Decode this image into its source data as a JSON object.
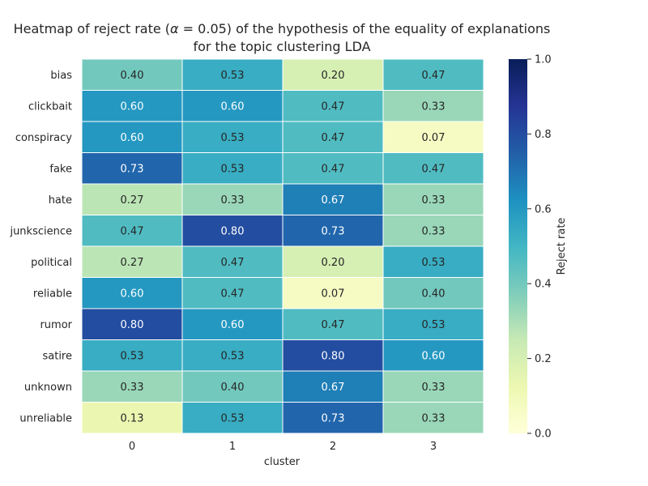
{
  "chart_data": {
    "type": "heatmap",
    "title_prefix": "Heatmap of reject rate (",
    "title_alpha_symbol": "α",
    "title_alpha_value": " = 0.05",
    "title_suffix": ") of the hypothesis of the equality of explanations",
    "title_line2": "for the topic clustering LDA",
    "xlabel": "cluster",
    "ylabel": "",
    "x_categories": [
      "0",
      "1",
      "2",
      "3"
    ],
    "y_categories": [
      "bias",
      "clickbait",
      "conspiracy",
      "fake",
      "hate",
      "junkscience",
      "political",
      "reliable",
      "rumor",
      "satire",
      "unknown",
      "unreliable"
    ],
    "values": [
      [
        0.4,
        0.53,
        0.2,
        0.47
      ],
      [
        0.6,
        0.6,
        0.47,
        0.33
      ],
      [
        0.6,
        0.53,
        0.47,
        0.07
      ],
      [
        0.73,
        0.53,
        0.47,
        0.47
      ],
      [
        0.27,
        0.33,
        0.67,
        0.33
      ],
      [
        0.47,
        0.8,
        0.73,
        0.33
      ],
      [
        0.27,
        0.47,
        0.2,
        0.53
      ],
      [
        0.6,
        0.47,
        0.07,
        0.4
      ],
      [
        0.8,
        0.6,
        0.47,
        0.53
      ],
      [
        0.53,
        0.53,
        0.8,
        0.6
      ],
      [
        0.33,
        0.4,
        0.67,
        0.33
      ],
      [
        0.13,
        0.53,
        0.73,
        0.33
      ]
    ],
    "value_format_decimals": 2,
    "colormap": "YlGnBu",
    "vmin": 0.0,
    "vmax": 1.0,
    "colorbar_label": "Reject rate",
    "colorbar_ticks": [
      "0.0",
      "0.2",
      "0.4",
      "0.6",
      "0.8",
      "1.0"
    ],
    "grid": false
  }
}
